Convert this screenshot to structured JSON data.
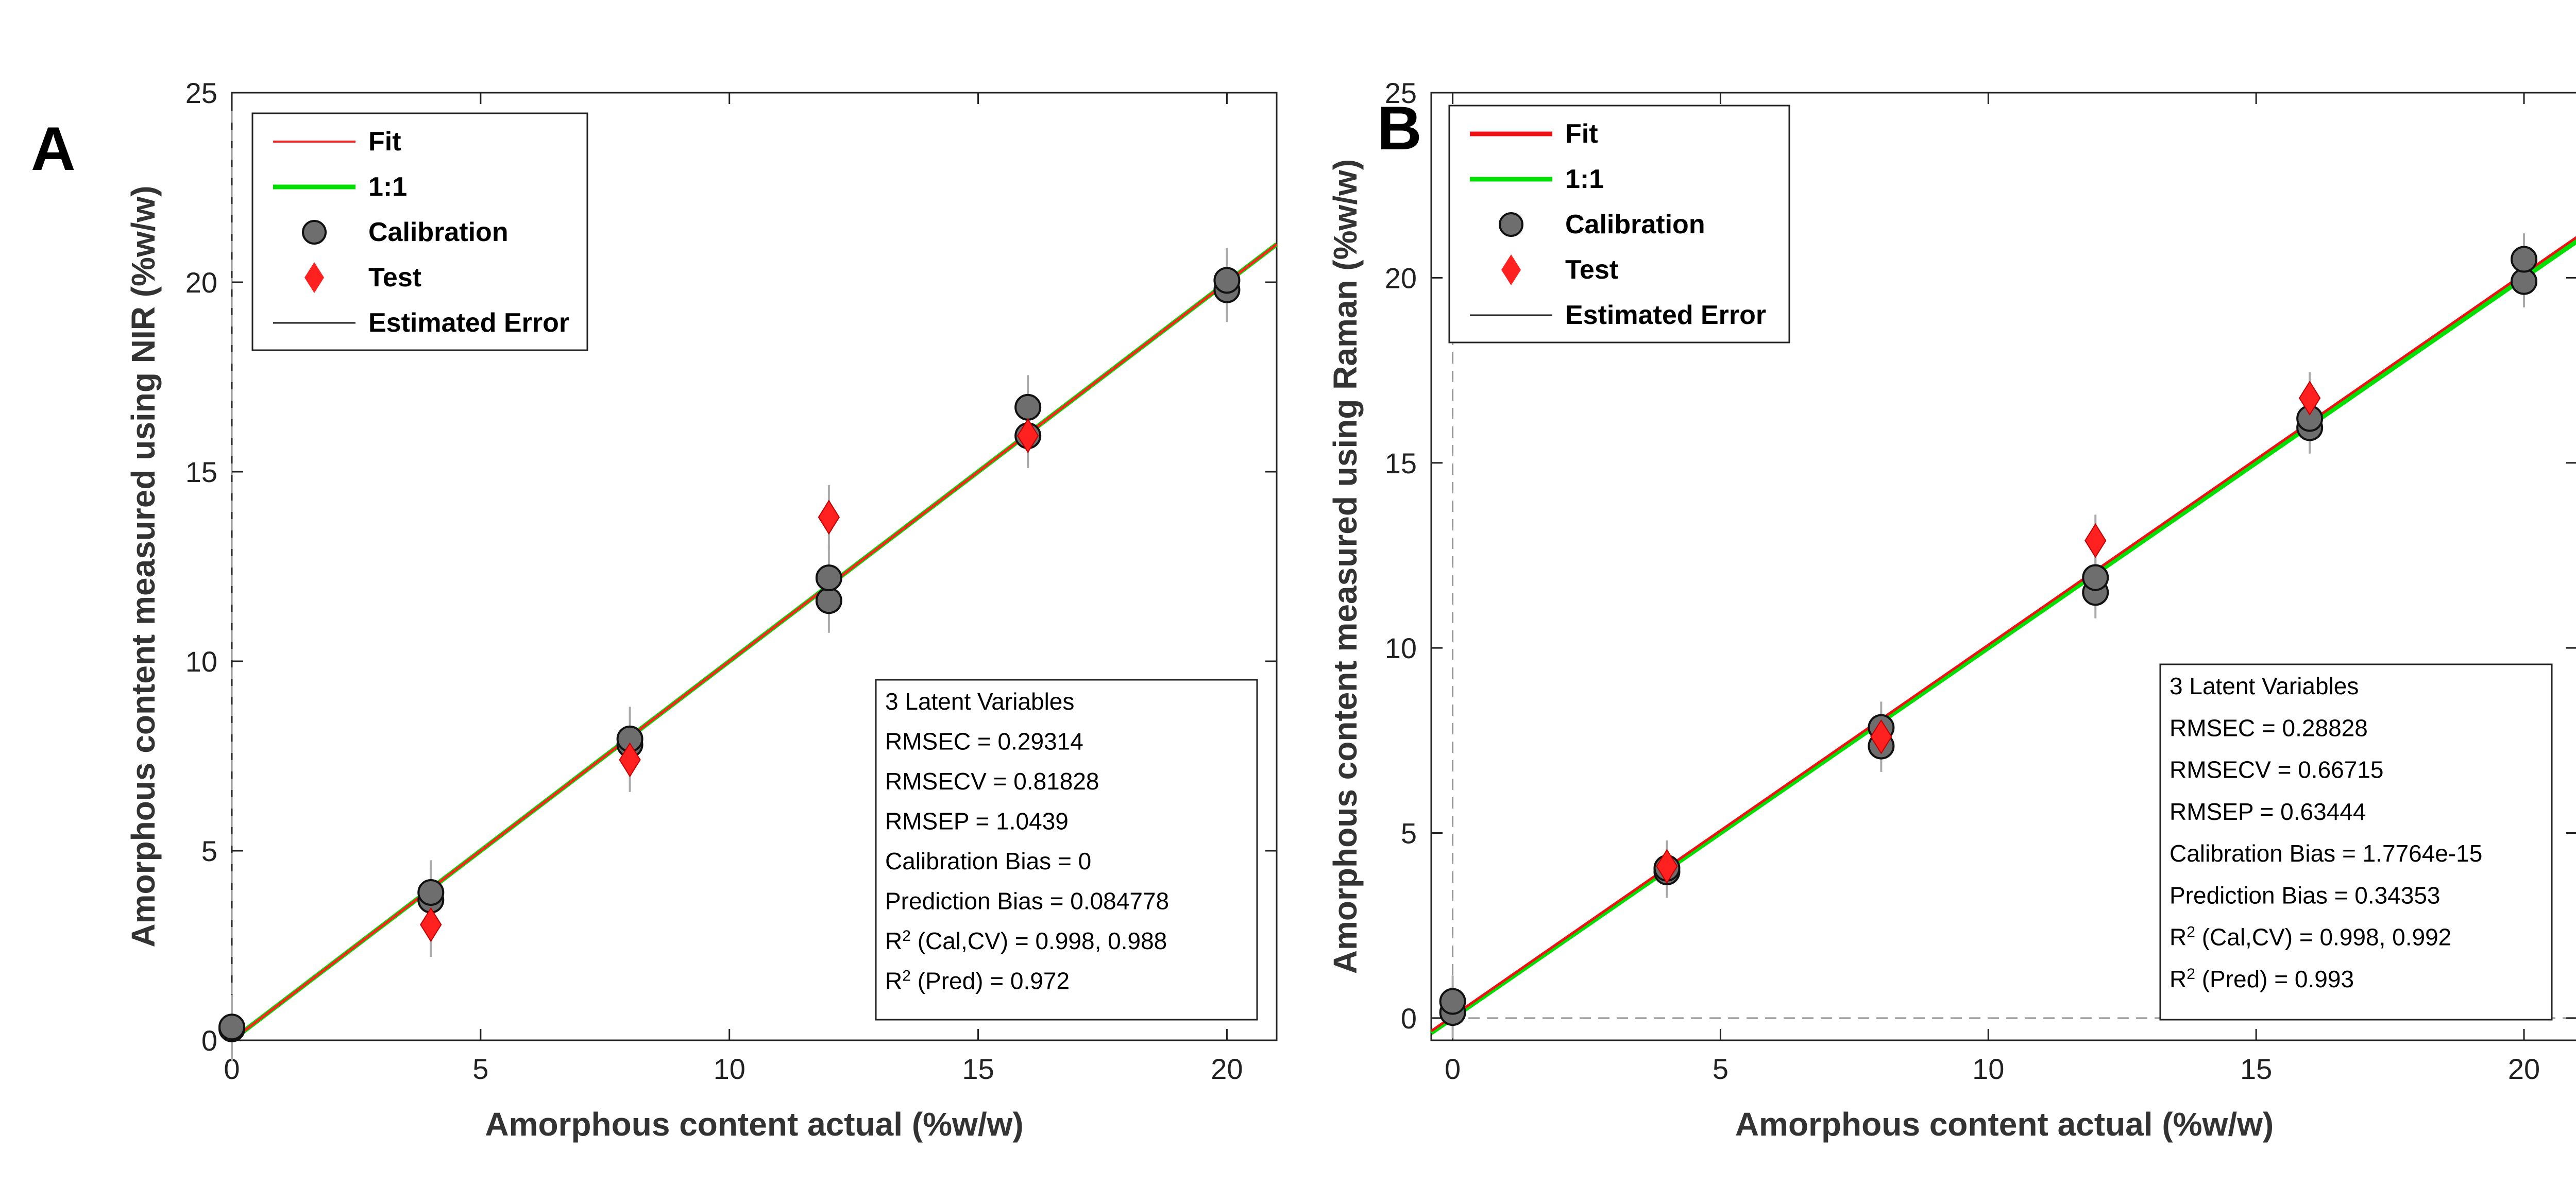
{
  "chart_data": [
    {
      "panel_label": "A",
      "type": "scatter",
      "xlabel": "Amorphous content actual (%w/w)",
      "ylabel": "Amorphous content measured using NIR (%w/w)",
      "xlim": [
        0,
        21
      ],
      "ylim": [
        0,
        25
      ],
      "xticks": [
        "0",
        "5",
        "10",
        "15",
        "20"
      ],
      "yticks": [
        "0",
        "5",
        "10",
        "15",
        "20",
        "25"
      ],
      "legend": {
        "fit": "Fit",
        "one_to_one": "1:1",
        "calibration": "Calibration",
        "test": "Test",
        "error": "Estimated Error"
      },
      "fit_line": {
        "slope": 1.0,
        "intercept": 0.0
      },
      "calibration": [
        [
          0,
          0.3
        ],
        [
          0,
          0.35
        ],
        [
          4,
          3.7
        ],
        [
          4,
          3.9
        ],
        [
          8,
          7.8
        ],
        [
          8,
          7.95
        ],
        [
          12,
          11.6
        ],
        [
          12,
          12.2
        ],
        [
          16,
          15.95
        ],
        [
          16,
          16.7
        ],
        [
          20,
          19.8
        ],
        [
          20,
          20.05
        ]
      ],
      "test": [
        [
          4,
          3.05
        ],
        [
          8,
          7.4
        ],
        [
          12,
          13.8
        ],
        [
          16,
          15.95
        ]
      ],
      "error_bar": 0.85,
      "stats": {
        "line1": "3 Latent Variables",
        "line2": "RMSEC = 0.29314",
        "line3": "RMSECV = 0.81828",
        "line4": "RMSEP = 1.0439",
        "line5": "Calibration Bias = 0",
        "line6": "Prediction Bias = 0.084778",
        "r2_cal_label": " (Cal,CV) = 0.998, 0.988",
        "r2_pred_label": " (Pred) = 0.972"
      },
      "colors": {
        "fit": "#ff2020",
        "one_to_one": "#00e000",
        "calibration": "#6e6e6e",
        "test": "#ff2020"
      }
    },
    {
      "panel_label": "B",
      "type": "scatter",
      "xlabel": "Amorphous content actual (%w/w)",
      "ylabel": "Amorphous content measured using Raman (%w/w)",
      "xlim": [
        -0.4,
        21
      ],
      "ylim": [
        -0.6,
        25
      ],
      "xticks": [
        "0",
        "5",
        "10",
        "15",
        "20"
      ],
      "yticks": [
        "0",
        "5",
        "10",
        "15",
        "20",
        "25"
      ],
      "legend": {
        "fit": "Fit",
        "one_to_one": "1:1",
        "calibration": "Calibration",
        "test": "Test",
        "error": "Estimated Error"
      },
      "fit_line": {
        "slope": 1.003,
        "intercept": 0.05
      },
      "calibration": [
        [
          0,
          0.15
        ],
        [
          0,
          0.45
        ],
        [
          4,
          3.95
        ],
        [
          4,
          4.05
        ],
        [
          8,
          7.35
        ],
        [
          8,
          7.85
        ],
        [
          12,
          11.5
        ],
        [
          12,
          11.9
        ],
        [
          16,
          15.95
        ],
        [
          16,
          16.2
        ],
        [
          20,
          19.9
        ],
        [
          20,
          20.5
        ]
      ],
      "test": [
        [
          4,
          4.1
        ],
        [
          8,
          7.6
        ],
        [
          12,
          12.9
        ],
        [
          16,
          16.75
        ]
      ],
      "error_bar": 0.7,
      "stats": {
        "line1": "3 Latent Variables",
        "line2": "RMSEC = 0.28828",
        "line3": "RMSECV = 0.66715",
        "line4": "RMSEP = 0.63444",
        "line5": "Calibration Bias = 1.7764e-15",
        "line6": "Prediction Bias = 0.34353",
        "r2_cal_label": " (Cal,CV) = 0.998, 0.992",
        "r2_pred_label": " (Pred) = 0.993"
      },
      "colors": {
        "fit": "#ee1111",
        "one_to_one": "#00e000",
        "calibration": "#6e6e6e",
        "test": "#ff2020"
      }
    }
  ]
}
